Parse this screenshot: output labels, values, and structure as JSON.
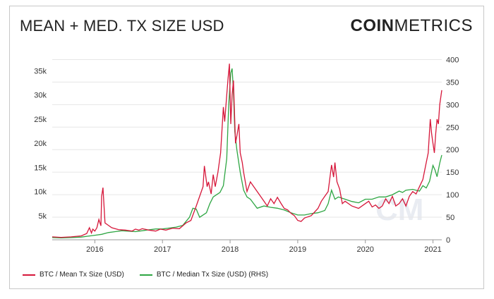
{
  "header": {
    "title": "MEAN + MED. TX SIZE USD",
    "logo_bold": "COIN",
    "logo_light": "METRICS"
  },
  "watermark": "CM",
  "colors": {
    "mean": "#d6173a",
    "median": "#2ea643",
    "grid": "#e6e6e6"
  },
  "legend": {
    "mean_label": "BTC / Mean Tx Size (USD)",
    "median_label": "BTC / Median Tx Size (USD) (RHS)"
  },
  "chart_data": {
    "type": "line",
    "x_ticks": [
      "2016",
      "2017",
      "2018",
      "2019",
      "2020",
      "2021"
    ],
    "y_left_ticks": [
      "5k",
      "10k",
      "15k",
      "20k",
      "25k",
      "30k",
      "35k"
    ],
    "y_right_ticks": [
      "0",
      "50",
      "100",
      "150",
      "200",
      "250",
      "300",
      "350",
      "400"
    ],
    "xlim": [
      2015.37,
      2021.13
    ],
    "ylim_left": [
      0,
      38000
    ],
    "ylim_right": [
      0,
      407
    ],
    "series": [
      {
        "name": "BTC / Mean Tx Size (USD)",
        "axis": "left",
        "x": [
          2015.37,
          2015.5,
          2015.65,
          2015.8,
          2015.88,
          2015.92,
          2015.95,
          2015.97,
          2016.0,
          2016.03,
          2016.06,
          2016.09,
          2016.1,
          2016.12,
          2016.15,
          2016.2,
          2016.25,
          2016.35,
          2016.45,
          2016.55,
          2016.6,
          2016.65,
          2016.7,
          2016.8,
          2016.9,
          2016.97,
          2017.05,
          2017.15,
          2017.25,
          2017.35,
          2017.42,
          2017.5,
          2017.55,
          2017.6,
          2017.62,
          2017.66,
          2017.68,
          2017.72,
          2017.75,
          2017.78,
          2017.82,
          2017.86,
          2017.9,
          2017.92,
          2017.95,
          2017.97,
          2017.99,
          2018.01,
          2018.03,
          2018.05,
          2018.08,
          2018.1,
          2018.13,
          2018.15,
          2018.18,
          2018.2,
          2018.25,
          2018.3,
          2018.35,
          2018.45,
          2018.5,
          2018.55,
          2018.6,
          2018.65,
          2018.7,
          2018.75,
          2018.8,
          2018.85,
          2018.9,
          2018.95,
          2019.0,
          2019.05,
          2019.1,
          2019.2,
          2019.3,
          2019.35,
          2019.4,
          2019.45,
          2019.5,
          2019.53,
          2019.55,
          2019.58,
          2019.62,
          2019.66,
          2019.7,
          2019.8,
          2019.9,
          2020.0,
          2020.05,
          2020.1,
          2020.15,
          2020.2,
          2020.25,
          2020.3,
          2020.35,
          2020.4,
          2020.45,
          2020.5,
          2020.55,
          2020.6,
          2020.65,
          2020.7,
          2020.75,
          2020.8,
          2020.85,
          2020.9,
          2020.93,
          2020.96,
          2020.98,
          2021.0,
          2021.02,
          2021.04,
          2021.06,
          2021.08,
          2021.1,
          2021.13
        ],
        "y": [
          600,
          500,
          600,
          800,
          1300,
          2500,
          1400,
          2200,
          1800,
          2500,
          4200,
          2900,
          9000,
          10800,
          3500,
          3000,
          2500,
          2100,
          2000,
          1800,
          2200,
          2000,
          2300,
          2000,
          1800,
          2200,
          2000,
          2400,
          2300,
          3500,
          4000,
          7000,
          9000,
          11000,
          15300,
          11000,
          12000,
          9500,
          13500,
          11000,
          14000,
          18000,
          27500,
          24500,
          30000,
          33500,
          36500,
          24000,
          30000,
          33000,
          20000,
          21500,
          24000,
          18000,
          16000,
          14000,
          10000,
          12000,
          11000,
          9000,
          8000,
          7000,
          8500,
          7500,
          8800,
          7600,
          6500,
          6200,
          5500,
          5000,
          4000,
          3800,
          4500,
          5000,
          6500,
          8000,
          9000,
          10000,
          15500,
          13000,
          16000,
          12000,
          10500,
          7500,
          8000,
          7000,
          6500,
          7500,
          8000,
          6800,
          7200,
          6500,
          7000,
          8500,
          7500,
          9000,
          7000,
          7500,
          8500,
          7000,
          9000,
          10000,
          9500,
          11000,
          12500,
          16000,
          18000,
          25000,
          22000,
          20000,
          18000,
          22000,
          25000,
          24000,
          28000,
          31000
        ]
      },
      {
        "name": "BTC / Median Tx Size (USD) (RHS)",
        "axis": "right",
        "x": [
          2015.37,
          2015.5,
          2015.65,
          2015.8,
          2015.9,
          2016.0,
          2016.1,
          2016.2,
          2016.3,
          2016.4,
          2016.5,
          2016.6,
          2016.7,
          2016.8,
          2016.9,
          2017.0,
          2017.1,
          2017.2,
          2017.3,
          2017.4,
          2017.45,
          2017.5,
          2017.55,
          2017.6,
          2017.65,
          2017.7,
          2017.75,
          2017.8,
          2017.85,
          2017.9,
          2017.95,
          2017.98,
          2018.01,
          2018.03,
          2018.05,
          2018.07,
          2018.1,
          2018.12,
          2018.15,
          2018.2,
          2018.25,
          2018.3,
          2018.35,
          2018.4,
          2018.5,
          2018.6,
          2018.7,
          2018.8,
          2018.9,
          2019.0,
          2019.1,
          2019.2,
          2019.3,
          2019.4,
          2019.45,
          2019.5,
          2019.55,
          2019.6,
          2019.7,
          2019.8,
          2019.9,
          2020.0,
          2020.1,
          2020.2,
          2020.3,
          2020.4,
          2020.5,
          2020.55,
          2020.6,
          2020.7,
          2020.8,
          2020.85,
          2020.9,
          2020.95,
          2021.0,
          2021.03,
          2021.06,
          2021.1,
          2021.13
        ],
        "y": [
          5,
          4,
          5,
          6,
          8,
          10,
          12,
          16,
          18,
          20,
          19,
          18,
          20,
          22,
          24,
          24,
          26,
          28,
          32,
          50,
          70,
          68,
          50,
          55,
          60,
          80,
          95,
          100,
          105,
          120,
          180,
          300,
          370,
          380,
          330,
          240,
          200,
          180,
          150,
          110,
          95,
          90,
          80,
          70,
          75,
          72,
          70,
          66,
          60,
          55,
          55,
          58,
          60,
          65,
          80,
          110,
          90,
          95,
          90,
          85,
          82,
          90,
          90,
          95,
          95,
          100,
          108,
          105,
          110,
          112,
          108,
          120,
          115,
          130,
          165,
          155,
          140,
          170,
          188
        ]
      }
    ]
  }
}
